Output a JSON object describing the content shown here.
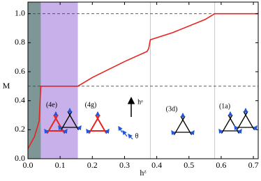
{
  "chart_data": {
    "type": "line",
    "xlabel": "hᶻ",
    "ylabel": "M",
    "x": [
      0,
      0.02,
      0.035,
      0.04,
      0.155,
      0.2,
      0.3,
      0.37,
      0.375,
      0.38,
      0.45,
      0.55,
      0.58,
      0.715
    ],
    "series": [
      {
        "color": "#e8231f",
        "values": [
          0.07,
          0.15,
          0.26,
          0.5,
          0.5,
          0.56,
          0.67,
          0.74,
          0.76,
          0.82,
          0.87,
          0.96,
          1.0,
          1.0
        ]
      }
    ],
    "xlim": [
      0,
      0.715
    ],
    "ylim": [
      0,
      1.08
    ],
    "xticks": [
      {
        "value": 0,
        "label": "0.0"
      },
      0.1,
      0.2,
      0.3,
      0.4,
      0.5,
      0.6,
      0.7
    ],
    "yticks": [
      {
        "value": 0,
        "label": "0.0"
      },
      0.2,
      0.4,
      0.6,
      0.8,
      {
        "value": 1,
        "label": "1.0"
      }
    ],
    "shaded_regions": [
      {
        "xlim": [
          0,
          0.04
        ],
        "color": "#7f9696"
      },
      {
        "xlim": [
          0.04,
          0.155
        ],
        "color": "#c8b0ea"
      }
    ],
    "hlines": [
      0.5,
      1.0
    ],
    "vlines": [
      0.38,
      0.58
    ],
    "annotations": [
      "(4e)",
      "(4g)",
      "θ",
      "hᶻ",
      "(3d)",
      "(1a)"
    ]
  }
}
